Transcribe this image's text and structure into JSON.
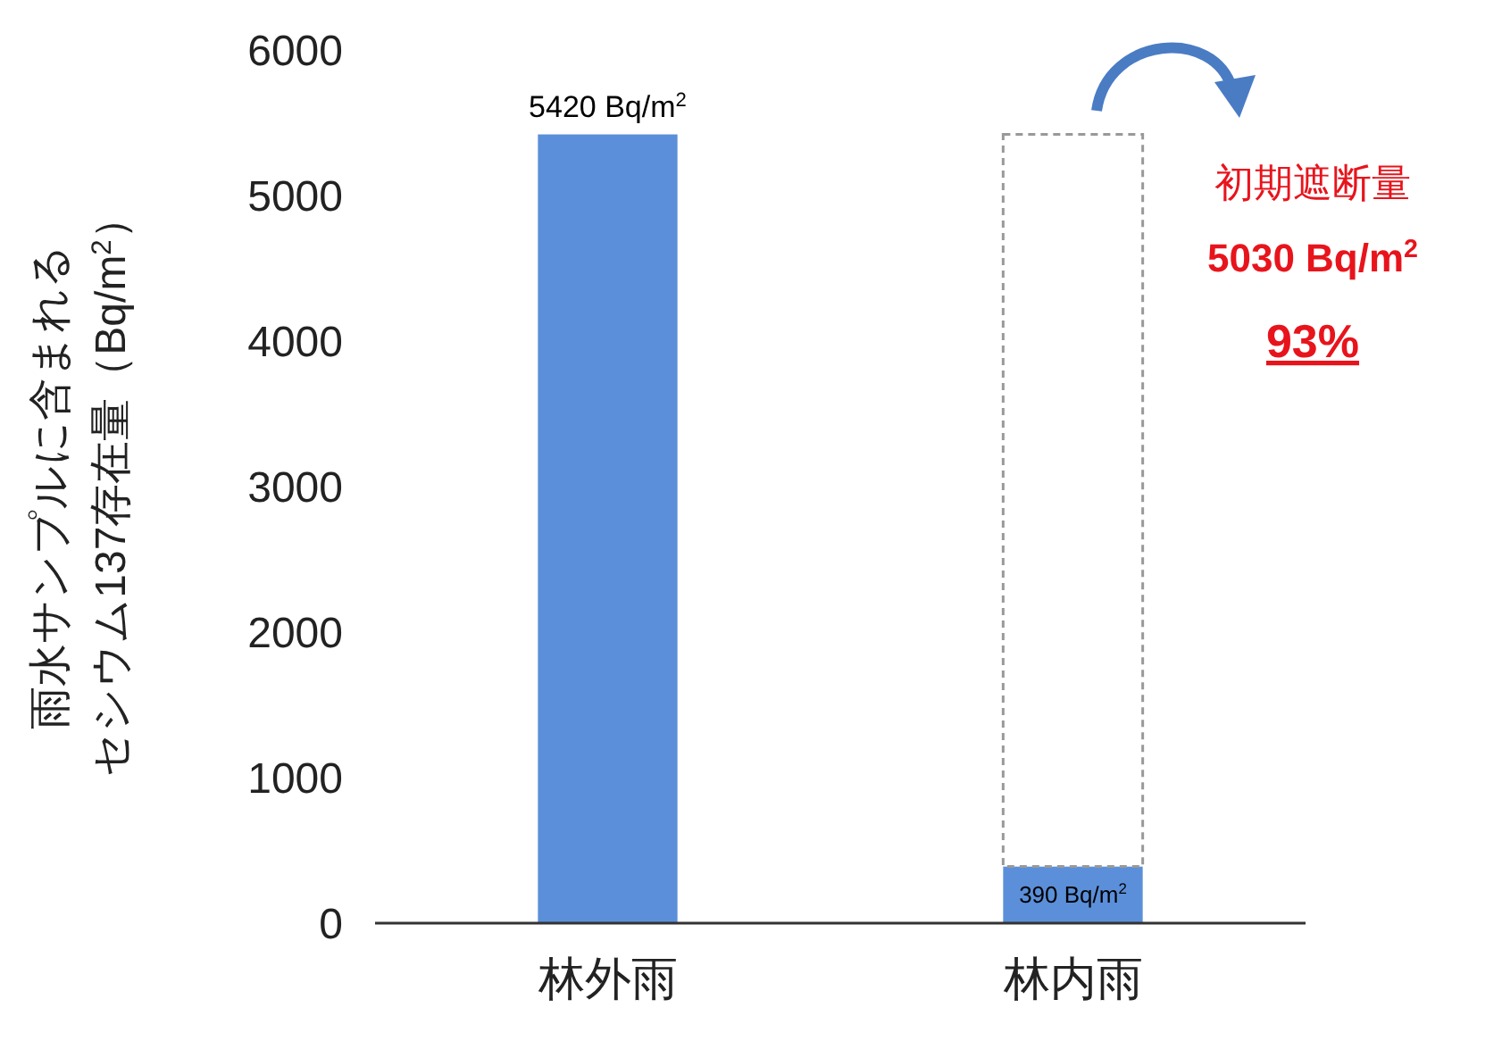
{
  "chart_data": {
    "type": "bar",
    "ylabel": "雨水サンプルに含まれるセシウム137存在量（Bq/m$^{2}$）",
    "categories": [
      "林外雨",
      "林内雨"
    ],
    "stacked": true,
    "ylim": [
      0,
      6000
    ],
    "yticks": [
      0,
      1000,
      2000,
      3000,
      4000,
      5000,
      6000
    ],
    "grid": false,
    "series": [
      {
        "color": "#5b8fd9",
        "values": [
          5420,
          390
        ],
        "value_labels": [
          "5420 Bq/m$^{2}$",
          "390 Bq/m$^{2}$"
        ]
      },
      {
        "color": "#ffffff",
        "values": [
          null,
          5030
        ],
        "line_style": "dashed"
      }
    ],
    "annotations": [
      "初期遮断量",
      "5030 Bq/m$^{2}$",
      "93%"
    ]
  }
}
